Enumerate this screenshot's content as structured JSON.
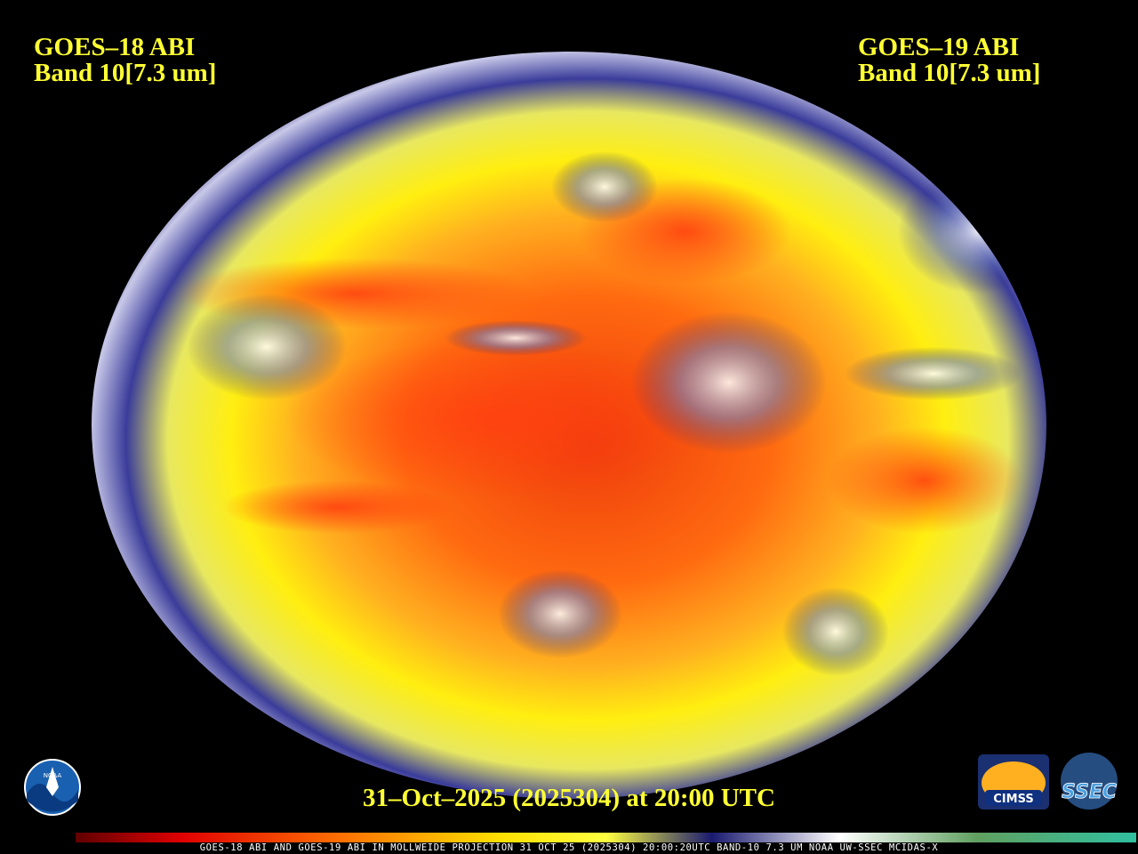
{
  "left_label": {
    "satellite": "GOES–18 ABI",
    "band": "Band 10[7.3 um]"
  },
  "right_label": {
    "satellite": "GOES–19 ABI",
    "band": "Band 10[7.3 um]"
  },
  "timestamp": "31–Oct–2025 (2025304) at 20:00 UTC",
  "logos": {
    "noaa": "NOAA",
    "cimss": "CIMSS",
    "ssec": "SSEC"
  },
  "footer": "GOES-18 ABI AND GOES-19 ABI IN MOLLWEIDE PROJECTION 31 OCT 25 (2025304) 20:00:20UTC BAND-10 7.3 UM NOAA UW-SSEC MCIDAS-X"
}
